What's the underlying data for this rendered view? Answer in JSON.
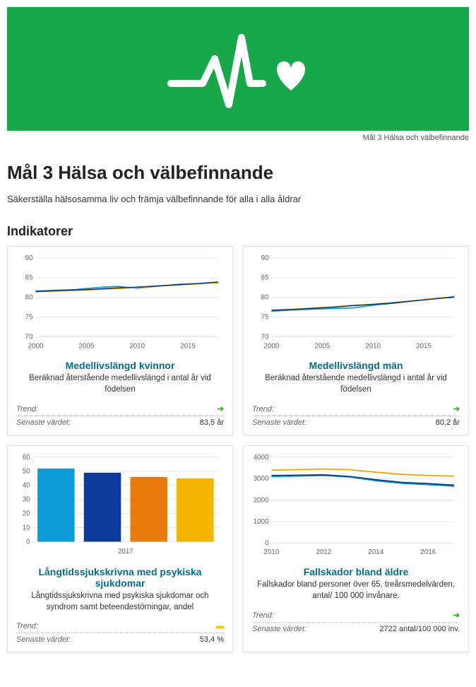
{
  "banner": {
    "background_color": "#18a849",
    "caption": "Mål 3 Hälsa och välbefinnande"
  },
  "page": {
    "title": "Mål 3 Hälsa och välbefinnande",
    "subtitle": "Säkerställa hälsosamma liv och främja välbefinnande för alla i alla åldrar",
    "section_title": "Indikatorer"
  },
  "meta_labels": {
    "trend": "Trend:",
    "latest": "Senaste värdet:"
  },
  "trend_colors": {
    "up": "#3aae2a",
    "flat": "#f2c200"
  },
  "cards": [
    {
      "id": "c0",
      "title": "Medellivslängd kvinnor",
      "desc": "Beräknad återstående medellivslängd i antal år vid födelsen",
      "trend": "up",
      "latest": "83,5 år",
      "chart": {
        "type": "line",
        "ylim": [
          70,
          90
        ],
        "ytick_step": 5,
        "xlim": [
          2000,
          2018
        ],
        "x_ticks": [
          2000,
          2005,
          2010,
          2015
        ],
        "axis_fontsize": 10,
        "grid_color": "#e5e5e5",
        "series": [
          {
            "color": "#0b9bd7",
            "width": 1.6,
            "points": [
              [
                2000,
                81.6
              ],
              [
                2002,
                81.8
              ],
              [
                2004,
                82.0
              ],
              [
                2006,
                82.5
              ],
              [
                2008,
                82.8
              ],
              [
                2010,
                82.3
              ],
              [
                2012,
                82.8
              ],
              [
                2014,
                83.3
              ],
              [
                2016,
                83.5
              ],
              [
                2018,
                83.8
              ]
            ]
          },
          {
            "color": "#f4a300",
            "width": 1.6,
            "points": [
              [
                2000,
                81.4
              ],
              [
                2002,
                81.6
              ],
              [
                2004,
                81.7
              ],
              [
                2006,
                82.0
              ],
              [
                2008,
                82.2
              ],
              [
                2010,
                82.5
              ],
              [
                2012,
                82.8
              ],
              [
                2014,
                83.1
              ],
              [
                2016,
                83.4
              ],
              [
                2018,
                83.7
              ]
            ]
          },
          {
            "color": "#0a3a7a",
            "width": 1.6,
            "points": [
              [
                2000,
                81.5
              ],
              [
                2002,
                81.7
              ],
              [
                2004,
                81.9
              ],
              [
                2006,
                82.1
              ],
              [
                2008,
                82.4
              ],
              [
                2010,
                82.6
              ],
              [
                2012,
                82.9
              ],
              [
                2014,
                83.2
              ],
              [
                2016,
                83.5
              ],
              [
                2018,
                83.9
              ]
            ]
          }
        ]
      }
    },
    {
      "id": "c1",
      "title": "Medellivslängd män",
      "desc": "Beräknad återstående medellivslängd i antal år vid födelsen",
      "trend": "up",
      "latest": "80,2 år",
      "chart": {
        "type": "line",
        "ylim": [
          70,
          90
        ],
        "ytick_step": 5,
        "xlim": [
          2000,
          2018
        ],
        "x_ticks": [
          2000,
          2005,
          2010,
          2015
        ],
        "axis_fontsize": 10,
        "grid_color": "#e5e5e5",
        "series": [
          {
            "color": "#0b9bd7",
            "width": 1.6,
            "points": [
              [
                2000,
                76.5
              ],
              [
                2002,
                76.8
              ],
              [
                2004,
                77.0
              ],
              [
                2006,
                77.2
              ],
              [
                2008,
                77.3
              ],
              [
                2010,
                78.0
              ],
              [
                2012,
                78.5
              ],
              [
                2014,
                79.1
              ],
              [
                2016,
                79.7
              ],
              [
                2018,
                80.0
              ]
            ]
          },
          {
            "color": "#f4a300",
            "width": 1.6,
            "points": [
              [
                2000,
                76.8
              ],
              [
                2002,
                77.0
              ],
              [
                2004,
                77.3
              ],
              [
                2006,
                77.6
              ],
              [
                2008,
                78.0
              ],
              [
                2010,
                78.3
              ],
              [
                2012,
                78.7
              ],
              [
                2014,
                79.2
              ],
              [
                2016,
                79.7
              ],
              [
                2018,
                80.2
              ]
            ]
          },
          {
            "color": "#0a3a7a",
            "width": 1.6,
            "points": [
              [
                2000,
                76.7
              ],
              [
                2002,
                76.9
              ],
              [
                2004,
                77.2
              ],
              [
                2006,
                77.5
              ],
              [
                2008,
                77.9
              ],
              [
                2010,
                78.2
              ],
              [
                2012,
                78.6
              ],
              [
                2014,
                79.1
              ],
              [
                2016,
                79.6
              ],
              [
                2018,
                80.1
              ]
            ]
          }
        ]
      }
    },
    {
      "id": "c2",
      "title": "Långtidssjukskrivna med psykiska sjukdomar",
      "desc": "Långtidssjukskrivna med psykiska sjukdomar och syndrom samt beteendestörningar, andel",
      "trend": "flat",
      "latest": "53,4 %",
      "chart": {
        "type": "bar",
        "ylim": [
          0,
          60
        ],
        "ytick_step": 10,
        "x_label": "2017",
        "axis_fontsize": 10,
        "grid_color": "#e5e5e5",
        "bar_width": 0.8,
        "bars": [
          {
            "color": "#0b9bd7",
            "value": 52
          },
          {
            "color": "#0a3a9a",
            "value": 49
          },
          {
            "color": "#e87b0c",
            "value": 46
          },
          {
            "color": "#f4b400",
            "value": 45
          }
        ]
      }
    },
    {
      "id": "c3",
      "title": "Fallskador bland äldre",
      "desc": "Fallskador bland personer över 65, treårsmedelvärden, antal/ 100 000 invånare.",
      "trend": "up",
      "latest": "2722 antal/100 000 inv.",
      "chart": {
        "type": "line",
        "ylim": [
          0,
          4000
        ],
        "ytick_step": 1000,
        "xlim": [
          2010,
          2017
        ],
        "x_ticks": [
          2010,
          2012,
          2014,
          2016
        ],
        "axis_fontsize": 10,
        "grid_color": "#e5e5e5",
        "series": [
          {
            "color": "#f4a300",
            "width": 1.8,
            "points": [
              [
                2010,
                3400
              ],
              [
                2011,
                3420
              ],
              [
                2012,
                3450
              ],
              [
                2013,
                3420
              ],
              [
                2014,
                3300
              ],
              [
                2015,
                3200
              ],
              [
                2016,
                3150
              ],
              [
                2017,
                3120
              ]
            ]
          },
          {
            "color": "#0b9bd7",
            "width": 1.8,
            "points": [
              [
                2010,
                3100
              ],
              [
                2011,
                3120
              ],
              [
                2012,
                3150
              ],
              [
                2013,
                3080
              ],
              [
                2014,
                2900
              ],
              [
                2015,
                2780
              ],
              [
                2016,
                2720
              ],
              [
                2017,
                2650
              ]
            ]
          },
          {
            "color": "#0a3a7a",
            "width": 1.8,
            "points": [
              [
                2010,
                3150
              ],
              [
                2011,
                3160
              ],
              [
                2012,
                3180
              ],
              [
                2013,
                3100
              ],
              [
                2014,
                2950
              ],
              [
                2015,
                2830
              ],
              [
                2016,
                2770
              ],
              [
                2017,
                2700
              ]
            ]
          }
        ]
      }
    }
  ]
}
